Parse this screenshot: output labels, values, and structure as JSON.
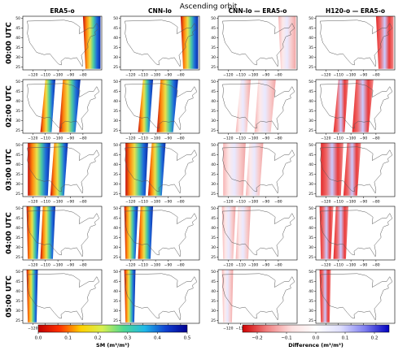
{
  "title": "Ascending orbit",
  "columns": [
    "ERA5-o",
    "CNN-lo",
    "CNN-lo — ERA5-o",
    "H120-o — ERA5-o"
  ],
  "rows": [
    "00:00 UTC",
    "02:00 UTC",
    "03:00 UTC",
    "04:00 UTC",
    "05:00 UTC"
  ],
  "map_axes": {
    "xlim": [
      -128,
      -65
    ],
    "ylim": [
      23.5,
      51
    ],
    "xticks": [
      {
        "value": -120,
        "label": "−120"
      },
      {
        "value": -110,
        "label": "−110"
      },
      {
        "value": -100,
        "label": "−100"
      },
      {
        "value": -90,
        "label": "−90"
      },
      {
        "value": -80,
        "label": "−80"
      }
    ],
    "yticks": [
      25,
      30,
      35,
      40,
      45,
      50
    ]
  },
  "colorbars": [
    {
      "label": "SM (m³/m³)",
      "lim": [
        0,
        0.5
      ],
      "ticks": [
        {
          "value": 0,
          "label": "0.0"
        },
        0.1,
        0.2,
        0.3,
        0.4,
        0.5
      ],
      "colors": [
        "#c00000",
        "#ff3000",
        "#ffd000",
        "#d8f050",
        "#50d890",
        "#20b8e8",
        "#1040d0",
        "#000090"
      ]
    },
    {
      "label": "Difference (m³/m³)",
      "lim": [
        -0.25,
        0.25
      ],
      "ticks": [
        {
          "value": -0.2,
          "label": "−0.2"
        },
        {
          "value": -0.1,
          "label": "−0.1"
        },
        {
          "value": 0,
          "label": "0.0"
        },
        0.1,
        0.2
      ],
      "colors": [
        "#d00000",
        "#f08080",
        "#fde0e0",
        "#ffffff",
        "#e0e0ff",
        "#8080f0",
        "#0000c0"
      ]
    }
  ]
}
